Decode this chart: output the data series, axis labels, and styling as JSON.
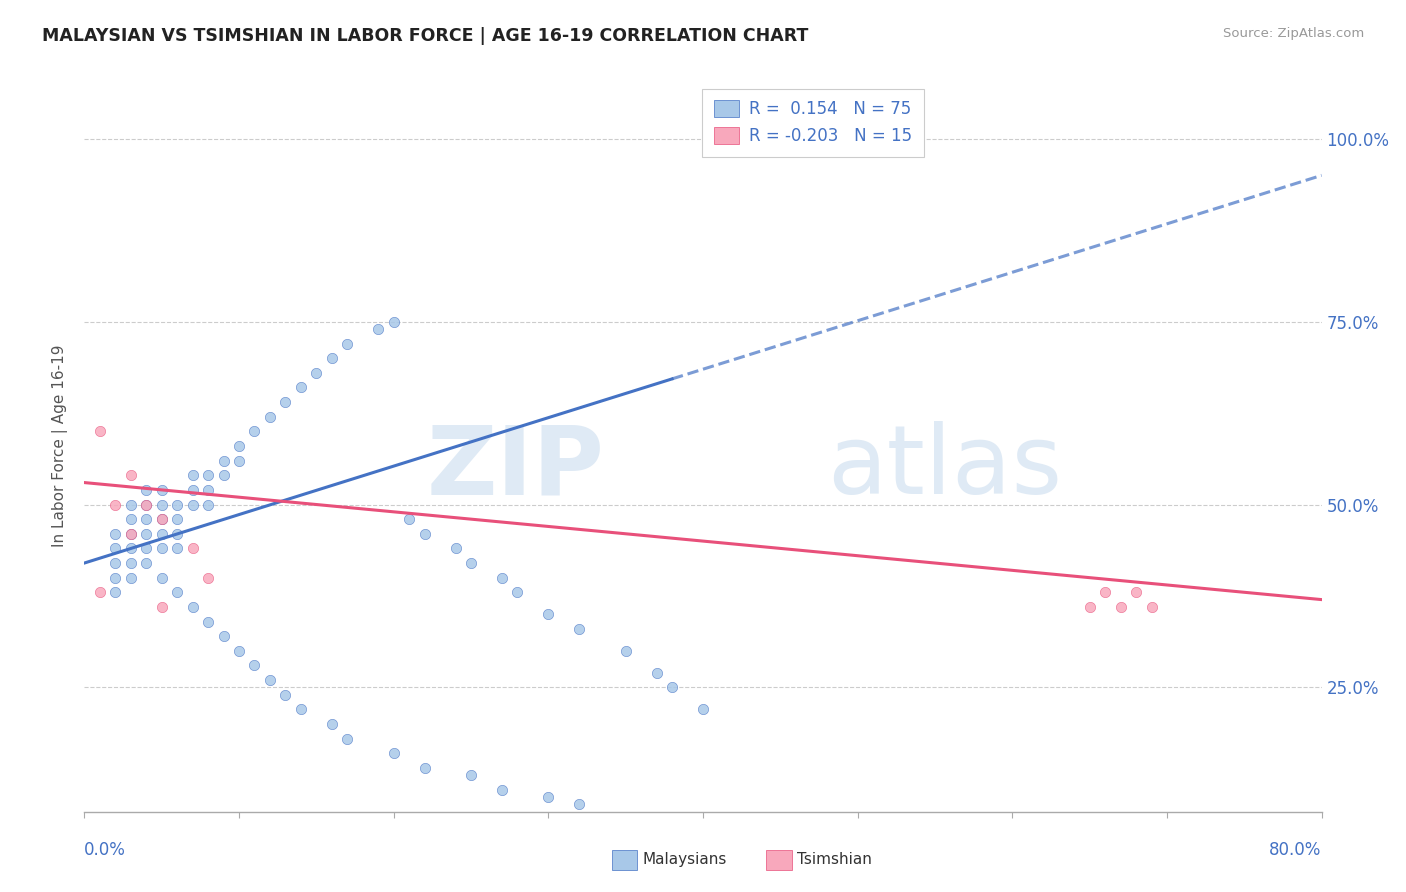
{
  "title": "MALAYSIAN VS TSIMSHIAN IN LABOR FORCE | AGE 16-19 CORRELATION CHART",
  "source": "Source: ZipAtlas.com",
  "ylabel": "In Labor Force | Age 16-19",
  "right_yticks": [
    0.25,
    0.5,
    0.75,
    1.0
  ],
  "right_ytick_labels": [
    "25.0%",
    "50.0%",
    "75.0%",
    "100.0%"
  ],
  "xlim": [
    0.0,
    0.8
  ],
  "ylim": [
    0.08,
    1.08
  ],
  "legend_r1": "R =  0.154",
  "legend_n1": "N = 75",
  "legend_r2": "R = -0.203",
  "legend_n2": "N = 15",
  "color_malaysian": "#a8c8e8",
  "color_tsimshian": "#f8a8bc",
  "color_line_malaysian": "#4472c4",
  "color_line_tsimshian": "#e8507a",
  "malaysian_x": [
    0.02,
    0.02,
    0.02,
    0.02,
    0.02,
    0.03,
    0.03,
    0.03,
    0.03,
    0.03,
    0.03,
    0.04,
    0.04,
    0.04,
    0.04,
    0.04,
    0.05,
    0.05,
    0.05,
    0.05,
    0.05,
    0.06,
    0.06,
    0.06,
    0.06,
    0.07,
    0.07,
    0.07,
    0.08,
    0.08,
    0.08,
    0.09,
    0.09,
    0.1,
    0.1,
    0.11,
    0.12,
    0.13,
    0.14,
    0.15,
    0.16,
    0.17,
    0.19,
    0.2,
    0.21,
    0.22,
    0.24,
    0.25,
    0.27,
    0.28,
    0.3,
    0.32,
    0.35,
    0.37,
    0.38,
    0.4,
    0.04,
    0.05,
    0.06,
    0.07,
    0.08,
    0.09,
    0.1,
    0.11,
    0.12,
    0.13,
    0.14,
    0.16,
    0.17,
    0.2,
    0.22,
    0.25,
    0.27,
    0.3,
    0.32
  ],
  "malaysian_y": [
    0.46,
    0.44,
    0.42,
    0.4,
    0.38,
    0.5,
    0.48,
    0.46,
    0.44,
    0.42,
    0.4,
    0.52,
    0.5,
    0.48,
    0.46,
    0.44,
    0.52,
    0.5,
    0.48,
    0.46,
    0.44,
    0.5,
    0.48,
    0.46,
    0.44,
    0.54,
    0.52,
    0.5,
    0.54,
    0.52,
    0.5,
    0.56,
    0.54,
    0.58,
    0.56,
    0.6,
    0.62,
    0.64,
    0.66,
    0.68,
    0.7,
    0.72,
    0.74,
    0.75,
    0.48,
    0.46,
    0.44,
    0.42,
    0.4,
    0.38,
    0.35,
    0.33,
    0.3,
    0.27,
    0.25,
    0.22,
    0.42,
    0.4,
    0.38,
    0.36,
    0.34,
    0.32,
    0.3,
    0.28,
    0.26,
    0.24,
    0.22,
    0.2,
    0.18,
    0.16,
    0.14,
    0.13,
    0.11,
    0.1,
    0.09
  ],
  "tsimshian_x": [
    0.01,
    0.01,
    0.02,
    0.03,
    0.03,
    0.04,
    0.05,
    0.05,
    0.07,
    0.08,
    0.65,
    0.66,
    0.67,
    0.68,
    0.69
  ],
  "tsimshian_y": [
    0.6,
    0.38,
    0.5,
    0.46,
    0.54,
    0.5,
    0.48,
    0.36,
    0.44,
    0.4,
    0.36,
    0.38,
    0.36,
    0.38,
    0.36
  ],
  "trendline_malaysian_x0": 0.0,
  "trendline_malaysian_y0": 0.42,
  "trendline_malaysian_x1": 0.8,
  "trendline_malaysian_y1": 0.95,
  "trendline_tsimshian_x0": 0.0,
  "trendline_tsimshian_y0": 0.53,
  "trendline_tsimshian_x1": 0.8,
  "trendline_tsimshian_y1": 0.37
}
